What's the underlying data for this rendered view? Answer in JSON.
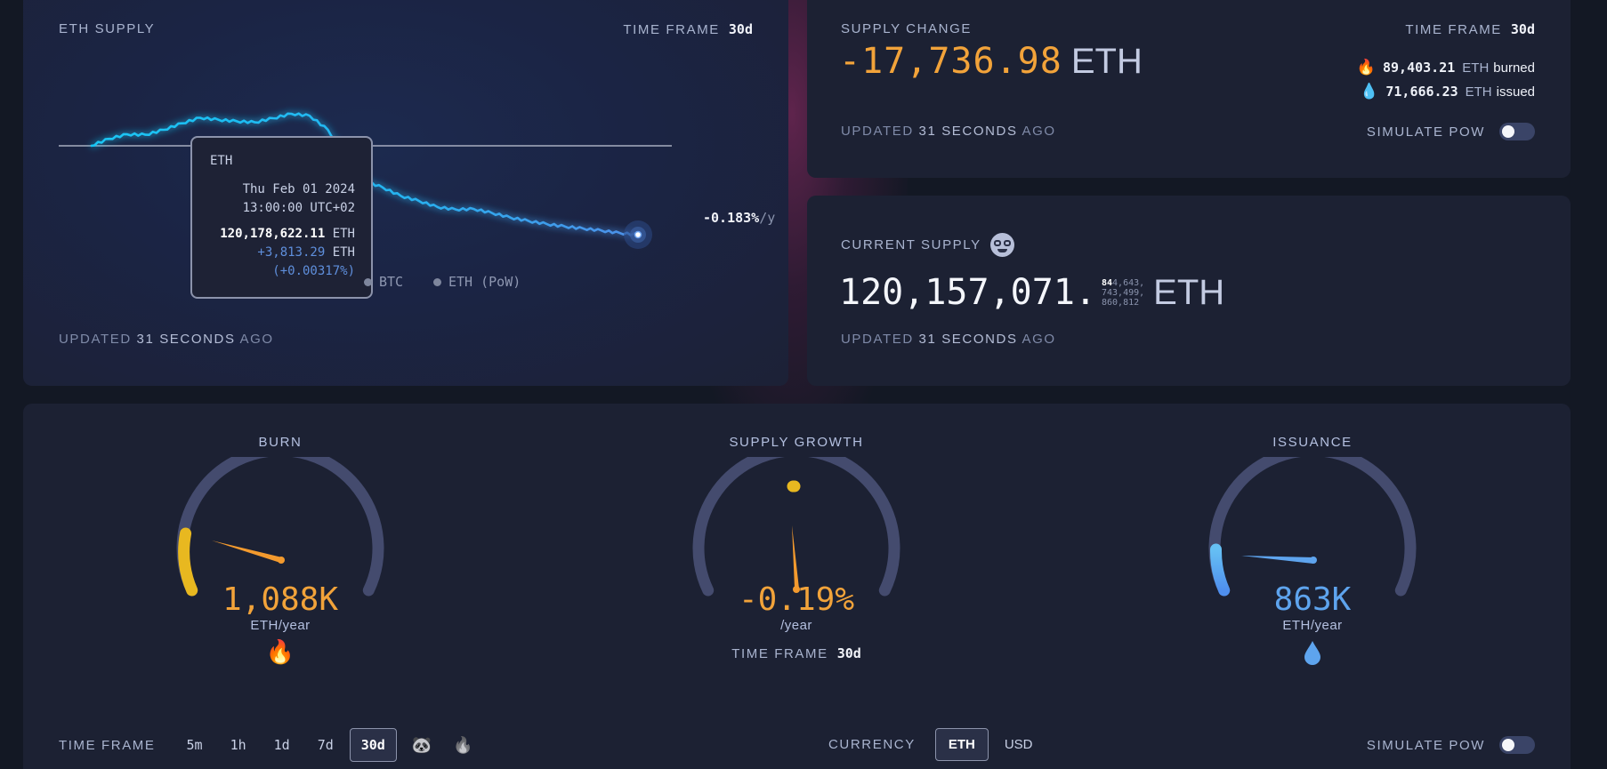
{
  "eth_supply": {
    "title": "ETH SUPPLY",
    "time_frame_label": "TIME FRAME",
    "time_frame_value": "30d",
    "rate": "-0.183%",
    "rate_unit": "/y",
    "updated_prefix": "UPDATED",
    "updated_value": "31 SECONDS",
    "updated_suffix": "AGO",
    "tooltip": {
      "title": "ETH",
      "date": "Thu Feb 01 2024",
      "time": "13:00:00 UTC+02",
      "supply": "120,178,622.11",
      "supply_unit": "ETH",
      "delta": "+3,813.29",
      "delta_unit": "ETH",
      "delta_pct": "(+0.00317%)"
    },
    "legend": [
      {
        "label": "BTC"
      },
      {
        "label": "ETH (PoW)"
      }
    ]
  },
  "chart_data": {
    "type": "line",
    "title": "ETH SUPPLY",
    "xlabel": "",
    "ylabel": "",
    "time_frame": "30d",
    "grid": false,
    "baseline_label": "start supply reference line",
    "series": [
      {
        "name": "ETH",
        "color": "#1fc0f2",
        "x_index": [
          0,
          1,
          2,
          3,
          4,
          5,
          6,
          7,
          8,
          9,
          10,
          11,
          12,
          13,
          14,
          15,
          16,
          17,
          18,
          19,
          20,
          21,
          22,
          23,
          24,
          25,
          26,
          27,
          28,
          29,
          30
        ],
        "values": [
          120174809,
          120176200,
          120177100,
          120177000,
          120178000,
          120179300,
          120180400,
          120180000,
          120179700,
          120179500,
          120180300,
          120181200,
          120180800,
          120178000,
          120172500,
          120167800,
          120166500,
          120164800,
          120163800,
          120162600,
          120162100,
          120162200,
          120161400,
          120160500,
          120159800,
          120159200,
          120158700,
          120158300,
          120157900,
          120157400,
          120157071
        ]
      }
    ],
    "annotations": [
      "-0.183%/y"
    ],
    "legend": [
      "BTC",
      "ETH (PoW)"
    ]
  },
  "supply_change": {
    "title": "SUPPLY CHANGE",
    "time_frame_label": "TIME FRAME",
    "time_frame_value": "30d",
    "value": "-17,736.98",
    "unit": "ETH",
    "burned_value": "89,403.21",
    "burned_unit": "ETH",
    "burned_label": "burned",
    "issued_value": "71,666.23",
    "issued_unit": "ETH",
    "issued_label": "issued",
    "updated_prefix": "UPDATED",
    "updated_value": "31 SECONDS",
    "updated_suffix": "AGO",
    "simulate_label": "SIMULATE PoW",
    "simulate_on": false
  },
  "current_supply": {
    "title": "CURRENT SUPPLY",
    "integer": "120,157,071.",
    "fraction_bold": "84",
    "fraction_line1": "4,643,",
    "fraction_line2": "743,499,",
    "fraction_line3": "860,812",
    "unit": "ETH",
    "updated_prefix": "UPDATED",
    "updated_value": "31 SECONDS",
    "updated_suffix": "AGO"
  },
  "gauges": {
    "burn": {
      "title": "BURN",
      "value": "1,088K",
      "unit": "ETH/year",
      "color": "#f2a33a"
    },
    "supply_growth": {
      "title": "SUPPLY GROWTH",
      "value": "-0.19%",
      "unit": "/year",
      "time_frame_label": "TIME FRAME",
      "time_frame_value": "30d",
      "color": "#f2a33a"
    },
    "issuance": {
      "title": "ISSUANCE",
      "value": "863K",
      "unit": "ETH/year",
      "color": "#5ea4ee"
    }
  },
  "controls": {
    "time_frame_label": "TIME FRAME",
    "time_frames": [
      "5m",
      "1h",
      "1d",
      "7d",
      "30d"
    ],
    "active_time_frame": "30d",
    "currency_label": "CURRENCY",
    "currencies": [
      "ETH",
      "USD"
    ],
    "active_currency": "ETH",
    "simulate_label": "SIMULATE PoW",
    "simulate_on": false
  },
  "colors": {
    "background": "#131824",
    "panel": "#1c2133",
    "accent_orange": "#f2a33a",
    "accent_yellow": "#e8b820",
    "accent_blue": "#5ea4ee",
    "line_cyan": "#1fc0f2",
    "gauge_track": "#444b6e"
  }
}
